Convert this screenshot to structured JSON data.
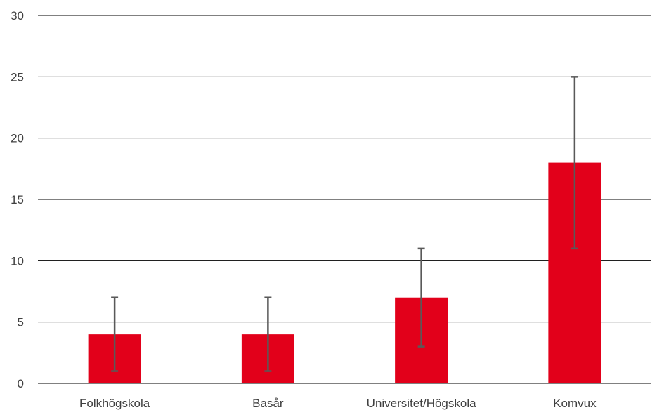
{
  "chart_data": {
    "type": "bar",
    "title": "",
    "xlabel": "",
    "ylabel": "",
    "categories": [
      "Folkhögskola",
      "Basår",
      "Universitet/Högskola",
      "Komvux"
    ],
    "values": [
      4,
      4,
      7,
      18
    ],
    "error_low": [
      1,
      1,
      3,
      11
    ],
    "error_high": [
      7,
      7,
      11,
      25
    ],
    "ylim": [
      0,
      30
    ],
    "yticks": [
      0,
      5,
      10,
      15,
      20,
      25,
      30
    ],
    "grid": true,
    "legend": "none",
    "bar_color": "#e2001a",
    "error_bar_color": "#595959",
    "grid_color": "#000000"
  }
}
